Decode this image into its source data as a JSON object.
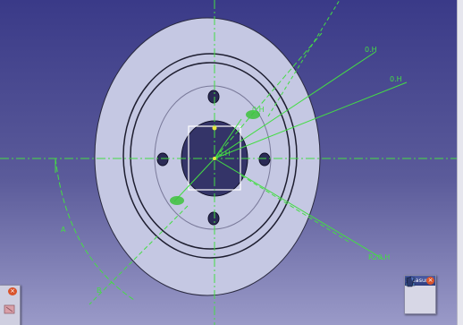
{
  "colors": {
    "background_top": "#3a3a88",
    "part_face": "#c5c8e3",
    "dimension_green": "#44dd44",
    "edge_dark": "#1e1e30"
  },
  "dimensions": {
    "label_1": "0.H",
    "label_2": "0.H",
    "label_3": "0.H",
    "label_4": "A",
    "label_5": "B",
    "label_6": "R20.H",
    "label_7": "0.H"
  },
  "measure_toolbar": {
    "title": "Measure",
    "close_icon": "close-icon",
    "tools": [
      "measure-between-icon",
      "measure-item-icon"
    ]
  },
  "left_toolbar": {
    "close_icon": "close-icon",
    "tool_icon": "tool-icon"
  }
}
